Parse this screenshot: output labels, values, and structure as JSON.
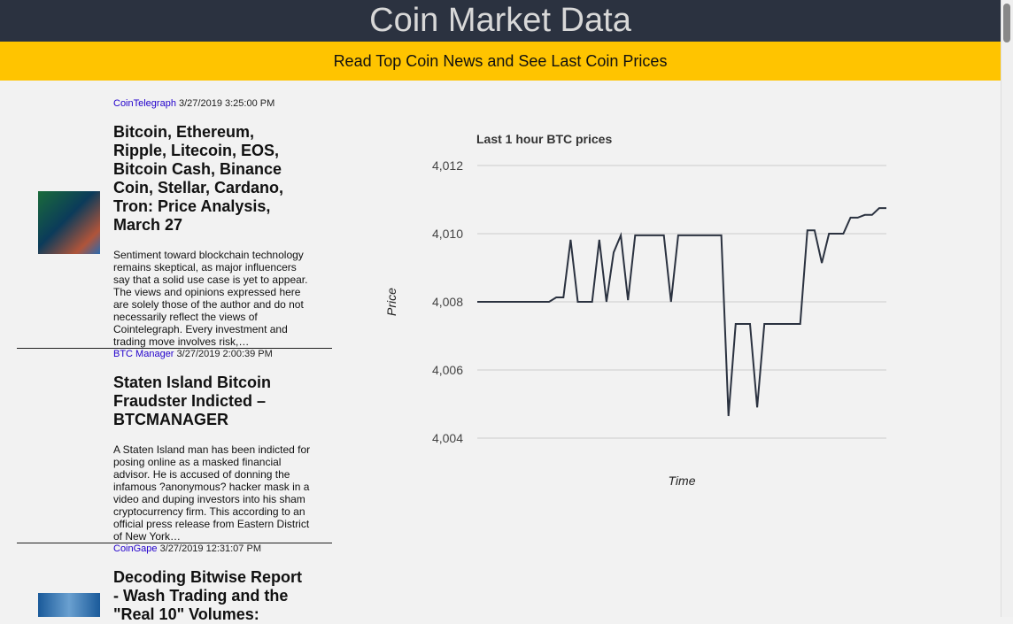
{
  "header": {
    "title": "Coin Market Data",
    "subtitle": "Read Top Coin News and See Last Coin Prices"
  },
  "news": [
    {
      "source": "CoinTelegraph",
      "date": "3/27/2019 3:25:00 PM",
      "title": "Bitcoin, Ethereum, Ripple, Litecoin, EOS, Bitcoin Cash, Binance Coin, Stellar, Cardano, Tron: Price Analysis, March 27",
      "summary": "Sentiment toward blockchain technology remains skeptical, as major influencers say that a solid use case is yet to appear. The views and opinions expressed here are solely those of the author and do not necessarily reflect the views of Cointelegraph. Every investment and trading move involves risk,…"
    },
    {
      "source": "BTC Manager",
      "date": "3/27/2019 2:00:39 PM",
      "title": "Staten Island Bitcoin Fraudster Indicted – BTCMANAGER",
      "summary": "A Staten Island man has been indicted for posing online as a masked financial advisor. He is accused of donning the infamous ?anonymous? hacker mask in a video and duping investors into his sham cryptocurrency firm. This according to an official press release from Eastern District of New York…"
    },
    {
      "source": "CoinGape",
      "date": "3/27/2019 12:31:07 PM",
      "title": "Decoding Bitwise Report - Wash Trading and the \"Real 10\" Volumes:"
    }
  ],
  "chart_data": {
    "type": "line",
    "title": "Last 1 hour BTC prices",
    "y_label": "Price",
    "x_label": "Time",
    "color": "#2b3240",
    "grid": true,
    "ylim": [
      4004,
      4012
    ],
    "yticks": [
      {
        "value": 4004,
        "label": "4,004"
      },
      {
        "value": 4006,
        "label": "4,006"
      },
      {
        "value": 4008,
        "label": "4,008"
      },
      {
        "value": 4010,
        "label": "4,010"
      },
      {
        "value": 4012,
        "label": "4,012"
      }
    ],
    "values": [
      4008,
      4008,
      4008,
      4008,
      4008,
      4008,
      4008,
      4008,
      4008,
      4008,
      4008,
      4008.13,
      4008.13,
      4009.82,
      4008,
      4008,
      4008,
      4009.82,
      4008,
      4009.45,
      4009.95,
      4008.05,
      4009.95,
      4009.95,
      4009.95,
      4009.95,
      4009.95,
      4008,
      4009.95,
      4009.95,
      4009.95,
      4009.95,
      4009.95,
      4009.95,
      4009.95,
      4004.65,
      4007.35,
      4007.35,
      4007.35,
      4004.9,
      4007.35,
      4007.35,
      4007.35,
      4007.35,
      4007.35,
      4007.35,
      4010.1,
      4010.1,
      4009.14,
      4010,
      4010,
      4010,
      4010.47,
      4010.47,
      4010.55,
      4010.55,
      4010.75,
      4010.75
    ]
  }
}
